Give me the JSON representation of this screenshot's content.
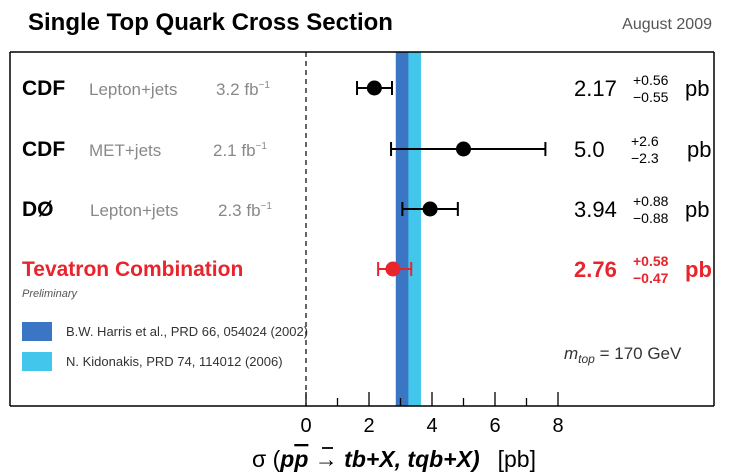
{
  "header": {
    "title": "Single Top Quark Cross Section",
    "date": "August 2009"
  },
  "chart_data": {
    "type": "scatter",
    "title": "Single Top Quark Cross Section",
    "xlabel_parts": [
      "σ (",
      "p",
      "p",
      " → tb+X, tqb+X)",
      "[pb]"
    ],
    "xlim": [
      -0.3,
      8.8
    ],
    "xticks": [
      0,
      2,
      4,
      6,
      8
    ],
    "reference_line_x": 0,
    "bands": [
      {
        "label": "B.W. Harris et al., PRD 66, 054024 (2002)",
        "low": 2.85,
        "high": 3.35,
        "color": "#3a76c4"
      },
      {
        "label": "N. Kidonakis, PRD 74, 114012 (2006)",
        "low": 3.25,
        "high": 3.65,
        "color": "#43c6ec"
      }
    ],
    "measurements": [
      {
        "experiment": "CDF",
        "channel": "Lepton+jets",
        "lumi": "3.2 fb",
        "lumi_sup": "−1",
        "value": 2.17,
        "value_text": "2.17",
        "err_up": 0.56,
        "err_down": 0.55,
        "up_text": "+0.56",
        "down_text": "−0.55",
        "unit": "pb",
        "highlight": false
      },
      {
        "experiment": "CDF",
        "channel": "MET+jets",
        "lumi": "2.1 fb",
        "lumi_sup": "−1",
        "value": 5.0,
        "value_text": "5.0",
        "err_up": 2.6,
        "err_down": 2.3,
        "up_text": "+2.6",
        "down_text": "−2.3",
        "unit": "pb",
        "highlight": false
      },
      {
        "experiment": "DØ",
        "channel": "Lepton+jets",
        "lumi": "2.3 fb",
        "lumi_sup": "−1",
        "value": 3.94,
        "value_text": "3.94",
        "err_up": 0.88,
        "err_down": 0.88,
        "up_text": "+0.88",
        "down_text": "−0.88",
        "unit": "pb",
        "highlight": false
      },
      {
        "experiment": "Tevatron Combination",
        "channel": "",
        "lumi": "",
        "lumi_sup": "",
        "note": "Preliminary",
        "value": 2.76,
        "value_text": "2.76",
        "err_up": 0.58,
        "err_down": 0.47,
        "up_text": "+0.58",
        "down_text": "−0.47",
        "unit": "pb",
        "highlight": true
      }
    ],
    "mass_label": {
      "symbol": "m",
      "subscript": "top",
      "text": " = 170 GeV"
    },
    "colors": {
      "highlight": "#e8242c",
      "channel": "#888888",
      "axis": "#000000"
    }
  }
}
